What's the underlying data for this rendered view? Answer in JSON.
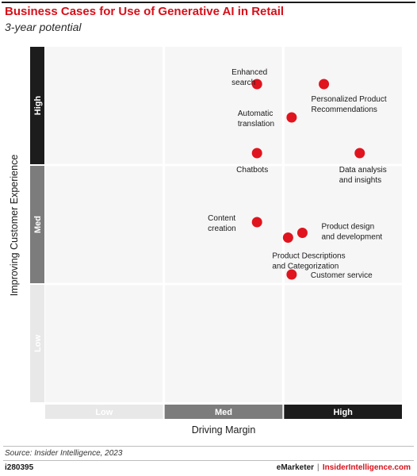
{
  "header": {
    "title": "Business Cases for Use of Generative AI in Retail",
    "subtitle": "3-year potential"
  },
  "chart_data": {
    "type": "scatter",
    "title": "Business Cases for Use of Generative AI in Retail",
    "subtitle": "3-year potential",
    "xlabel": "Driving Margin",
    "ylabel": "Improving Customer Experience",
    "x_categories": [
      "Low",
      "Med",
      "High"
    ],
    "y_categories": [
      "Low",
      "Med",
      "High"
    ],
    "xlim": [
      0,
      3
    ],
    "ylim": [
      0,
      3
    ],
    "grid": true,
    "point_color": "#e0141e",
    "points": [
      {
        "label": "Enhanced search",
        "x": 1.78,
        "y": 2.68
      },
      {
        "label": "Personalized Product Recommendations",
        "x": 2.34,
        "y": 2.68
      },
      {
        "label": "Automatic translation",
        "x": 2.07,
        "y": 2.4
      },
      {
        "label": "Chatbots",
        "x": 1.78,
        "y": 2.1
      },
      {
        "label": "Data analysis and insights",
        "x": 2.64,
        "y": 2.1
      },
      {
        "label": "Content creation",
        "x": 1.78,
        "y": 1.52
      },
      {
        "label": "Product design and development",
        "x": 2.16,
        "y": 1.43
      },
      {
        "label": "Product Descriptions and Categorization",
        "x": 2.04,
        "y": 1.39
      },
      {
        "label": "Customer service",
        "x": 2.07,
        "y": 1.08
      }
    ]
  },
  "footer": {
    "source": "Source: Insider Intelligence, 2023",
    "chart_id": "i280395",
    "brand_a": "eMarketer",
    "brand_sep": "|",
    "brand_b": "InsiderIntelligence.com"
  }
}
